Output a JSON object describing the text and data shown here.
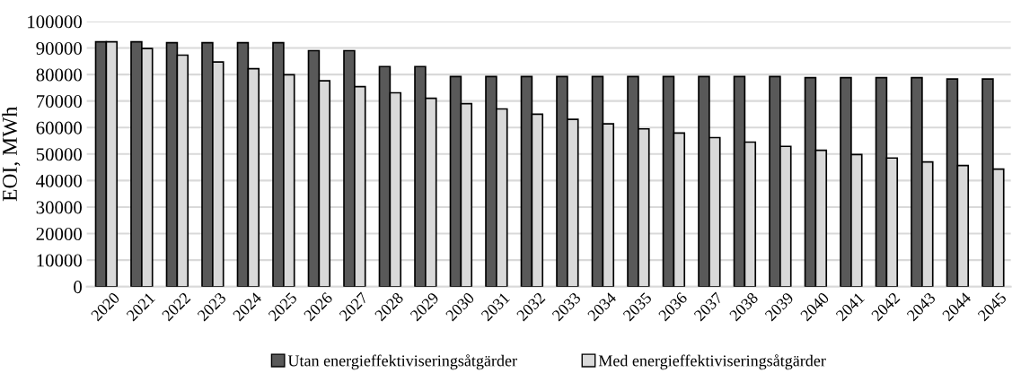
{
  "chart_data": {
    "type": "bar",
    "ylabel": "EOI, MWh",
    "categories": [
      "2020",
      "2021",
      "2022",
      "2023",
      "2024",
      "2025",
      "2026",
      "2027",
      "2028",
      "2029",
      "2030",
      "2031",
      "2032",
      "2033",
      "2034",
      "2035",
      "2036",
      "2037",
      "2038",
      "2039",
      "2040",
      "2041",
      "2042",
      "2043",
      "2044",
      "2045"
    ],
    "series": [
      {
        "name": "Utan energieffektiviseringsåtgärder",
        "color": "#595959",
        "values": [
          92300,
          92300,
          92000,
          92000,
          92000,
          92000,
          89000,
          89000,
          83000,
          83000,
          79200,
          79200,
          79200,
          79200,
          79200,
          79200,
          79200,
          79200,
          79200,
          79200,
          78800,
          78800,
          78800,
          78800,
          78300,
          78300
        ]
      },
      {
        "name": "Med energieffektiviseringsåtgärder",
        "color": "#d9d9d9",
        "values": [
          92300,
          89800,
          87300,
          84700,
          82200,
          79900,
          77600,
          75400,
          73100,
          71000,
          69000,
          67000,
          65000,
          63100,
          61400,
          59500,
          57900,
          56200,
          54500,
          52900,
          51400,
          49800,
          48500,
          47000,
          45700,
          44300
        ]
      }
    ],
    "ylim": [
      0,
      100000
    ],
    "yticks": [
      0,
      10000,
      20000,
      30000,
      40000,
      50000,
      60000,
      70000,
      80000,
      90000,
      100000
    ],
    "grid": "y",
    "legend": "bottom"
  }
}
